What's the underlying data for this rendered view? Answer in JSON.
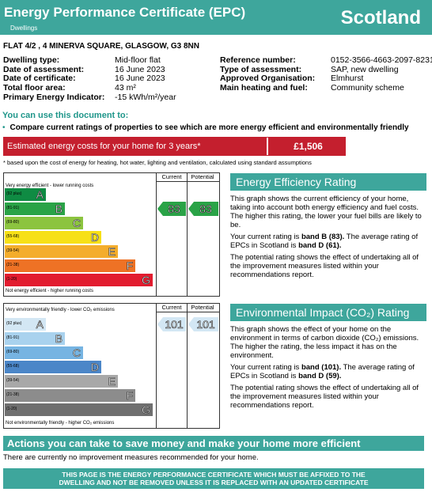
{
  "header": {
    "title": "Energy Performance Certificate (EPC)",
    "subtitle": "Dwellings",
    "country": "Scotland"
  },
  "address": "FLAT 4/2 , 4 MINERVA SQUARE, GLASGOW, G3 8NN",
  "details_left": [
    {
      "label": "Dwelling type:",
      "value": "Mid-floor flat"
    },
    {
      "label": "Date of assessment:",
      "value": "16 June 2023"
    },
    {
      "label": "Date of certificate:",
      "value": "16 June 2023"
    },
    {
      "label": "Total floor area:",
      "value": "43 m²"
    },
    {
      "label": "Primary Energy Indicator:",
      "value": "-15 kWh/m²/year"
    }
  ],
  "details_right": [
    {
      "label": "Reference number:",
      "value": "0152-3566-4663-2097-8231"
    },
    {
      "label": "Type of assessment:",
      "value": "SAP, new dwelling"
    },
    {
      "label": "Approved Organisation:",
      "value": "Elmhurst"
    },
    {
      "label": "Main heating and fuel:",
      "value": "Community scheme"
    }
  ],
  "use_doc": {
    "title": "You can use this document to:",
    "bullet": "Compare current ratings of properties to see which are more energy efficient and environmentally friendly"
  },
  "cost": {
    "label": "Estimated energy costs for your home for 3 years*",
    "value": "£1,506",
    "note": "* based upon the cost of energy for heating, hot water, lighting and ventilation, calculated using standard assumptions"
  },
  "columns": {
    "current": "Current",
    "potential": "Potential"
  },
  "efficiency_chart": {
    "top_text": "Very energy efficient - lower running costs",
    "bottom_text": "Not energy efficient - higher running costs",
    "bands": [
      {
        "range": "(92 plus)",
        "letter": "A",
        "color": "#0f8b43"
      },
      {
        "range": "(81-91)",
        "letter": "B",
        "color": "#2aa347"
      },
      {
        "range": "(69-80)",
        "letter": "C",
        "color": "#8cc43f"
      },
      {
        "range": "(55-68)",
        "letter": "D",
        "color": "#f7e017"
      },
      {
        "range": "(39-54)",
        "letter": "E",
        "color": "#f4ad2c"
      },
      {
        "range": "(21-38)",
        "letter": "F",
        "color": "#ee7225"
      },
      {
        "range": "(1-20)",
        "letter": "G",
        "color": "#e21c2f"
      }
    ],
    "current": "83",
    "potential": "83",
    "pointer_color": "#2aa347"
  },
  "environment_chart": {
    "top_text": "Very environmentally friendly - lower CO₂ emissions",
    "bottom_text": "Not environmentally friendly - higher CO₂ emissions",
    "bands": [
      {
        "range": "(92 plus)",
        "letter": "A",
        "color": "#d3e7f4"
      },
      {
        "range": "(81-91)",
        "letter": "B",
        "color": "#a9d2ee"
      },
      {
        "range": "(69-80)",
        "letter": "C",
        "color": "#76b4e2"
      },
      {
        "range": "(55-68)",
        "letter": "D",
        "color": "#4b86c8"
      },
      {
        "range": "(39-54)",
        "letter": "E",
        "color": "#a8a8a8"
      },
      {
        "range": "(21-38)",
        "letter": "F",
        "color": "#8c8c8c"
      },
      {
        "range": "(1-20)",
        "letter": "G",
        "color": "#6f6f6f"
      }
    ],
    "current": "101",
    "potential": "101",
    "pointer_color": "#d3e7f4"
  },
  "efficiency_panel": {
    "title": "Energy Efficiency Rating",
    "p1": "This graph shows the current efficiency of your home, taking into account both energy efficiency and fuel costs. The higher this rating, the lower your fuel bills are likely to be.",
    "p2_a": "Your current rating is ",
    "p2_b": "band B (83).",
    "p2_c": " The average rating of EPCs in Scotland is ",
    "p2_d": "band D (61).",
    "p3": "The potential rating shows the effect of undertaking all of the improvement measures listed within your recommendations report."
  },
  "environment_panel": {
    "title": "Environmental Impact (CO₂) Rating",
    "p1": "This graph shows the effect of your home on the environment in terms of carbon dioxide (CO₂) emissions. The higher the rating, the less impact it has on the environment.",
    "p2_a": "Your current rating is ",
    "p2_b": "band  (101).",
    "p2_c": " The average rating of EPCs in Scotland is ",
    "p2_d": "band D (59).",
    "p3": "The potential rating shows the effect of undertaking all of the improvement measures listed within your recommendations report."
  },
  "actions": {
    "title": "Actions you can take to save money and make your home more efficient",
    "text": "There are currently no improvement measures recommended for your home."
  },
  "footer": {
    "line1": "THIS PAGE IS THE ENERGY PERFORMANCE CERTIFICATE WHICH MUST BE AFFIXED TO THE",
    "line2": "DWELLING AND NOT BE REMOVED UNLESS IT IS REPLACED WITH AN UPDATED CERTIFICATE"
  }
}
